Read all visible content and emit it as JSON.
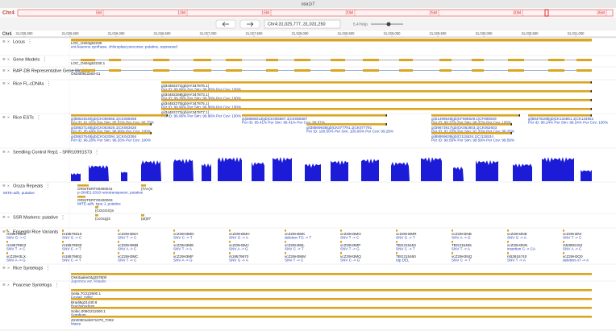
{
  "title": "osa1r7",
  "chromosome": "Chr4",
  "ideogram_ticks": [
    "5M",
    "10M",
    "15M",
    "20M",
    "25M",
    "30M",
    "35M"
  ],
  "location": "Chr4:31,025,777..31,031,250",
  "zoom": "5.47Kbp",
  "ruler": [
    "31,025,000",
    "31,025,500",
    "31,026,000",
    "31,026,500",
    "31,027,000",
    "31,027,500",
    "31,028,000",
    "31,028,500",
    "31,029,000",
    "31,029,500",
    "31,030,000",
    "31,030,500",
    "31,031,000"
  ],
  "tracks": [
    {
      "name": "Locus",
      "features": [
        {
          "label": "LOC_Os04g52230",
          "desc": "ent-kaurene synthase, chloroplast precursor, putative, expressed"
        }
      ]
    },
    {
      "name": "Gene Models",
      "features": [
        {
          "label": "LOC_Os04g52230.1"
        }
      ]
    },
    {
      "name": "RAP-DB Representative Gene Models",
      "features": [
        {
          "label": "Os04t0611800-01"
        }
      ]
    },
    {
      "name": "Rice FL-cDNAs",
      "features": [
        {
          "label": "gi|34482271|gb|AY347876.1|",
          "desc": "Per ID: 99.96% Per Sim: 99.96% Per Cov: 100%"
        },
        {
          "label": "gi|34482268|gb|AY347873.1|",
          "desc": "Per ID: 99.38% Per Sim: 99.38% Per Cov: 100%"
        },
        {
          "label": "gi|34482270|gb|AY347875.1|",
          "desc": "Per ID: 99.96% Per Sim: 99.96% Per Cov: 100%"
        },
        {
          "label": "gi|34482272|gb|AY347877.1|",
          "desc": "Per ID: 99.96% Per Sim: 99.96% Per Cov: 100%"
        }
      ]
    },
    {
      "name": "Rice ESTs",
      "features": [
        {
          "label": "gi|88634540|gb|CK056058.1|CK056058",
          "desc": "Per ID: 91.02% Per Sim: 95.52% Per Cov: 99.75%"
        },
        {
          "label": "gi|38656013|gb|CK055587.1|CK055587",
          "desc": "Per ID: 95.41% Per Sim: 98.41% Per Cov: 99.57%"
        },
        {
          "label": "gi|21499648|gb|CF695929.1|CF695929",
          "desc": "Per ID: 99.37% Per Sim: 99.37% Per Cov: 100%"
        },
        {
          "label": "gi|88476188|gb|CK134651.1|CK134651",
          "desc": "Per ID: 98.24% Per Sim: 98.24% Per Cov: 100%"
        },
        {
          "label": "gi|38637148|gb|CK063626.1|CK063626",
          "desc": "Per ID: 95.49% Per Sim: 98.49% Per Cov: 100%"
        },
        {
          "label": "gi|38669938|gb|CK077791.1|CK077791",
          "desc": "Per ID: 100.00% Per Sim: 100.00% Per Cov: 99.26%"
        },
        {
          "label": "gi|39673917|gb|CK062603.1|CK062603",
          "desc": "Per ID: 97.33% Per Sim: 97.33% Per Cov: 99.26%"
        },
        {
          "label": "gi|38637548|gb|CK043394.1|CK043394",
          "desc": "Per ID: 96.26% Per Sim: 98.26% Per Cov: 100%"
        },
        {
          "label": "gi|88959639|gb|CI115534.1|CI115534",
          "desc": "Per ID: 99.59% Per Sim: 99.59% Per Cov: 99.59%"
        }
      ]
    },
    {
      "name": "Seedling Control Rep1 - SRR10991573",
      "features": []
    },
    {
      "name": "Oryza Repeats",
      "features": [
        {
          "desc": "MITE-adh, putative"
        },
        {
          "label": "ORSITERT00400041",
          "desc": "p-SINE2-2010 retrotransposon, putative"
        },
        {
          "label": "ORSITERT00100003",
          "desc": "MITE-adh, type J, putative"
        },
        {
          "label": "(TAA)n"
        },
        {
          "label": "(CGGGG)n"
        }
      ]
    },
    {
      "name": "SSR Markers: putative",
      "features": [
        {
          "label": "(ccctcg)3"
        },
        {
          "label": "(at)07"
        }
      ]
    },
    {
      "name": "Ensembl Rice Variants",
      "features": [
        {
          "label": "rs19579849",
          "desc": "SNV G -> C"
        },
        {
          "label": "rs19579610",
          "desc": "SNV G -> C"
        },
        {
          "label": "vcZ29H3MA",
          "desc": "SNV T -> C"
        },
        {
          "label": "vcZ29H3MD",
          "desc": "SNV C -> T"
        },
        {
          "label": "vcZ29H3MH",
          "desc": "SNV G -> A"
        },
        {
          "label": "vcZ29H3MK",
          "desc": "deletion TG -> T"
        },
        {
          "label": "vcZ29H3MO",
          "desc": "SNV T -> C"
        },
        {
          "label": "vcZ29H3MR",
          "desc": "SNV G -> T"
        },
        {
          "label": "vcZ29H3NB",
          "desc": "SNV A -> G"
        },
        {
          "label": "vcZ29H3NE",
          "desc": "SNV G -> A"
        },
        {
          "label": "vcZ29H3NI",
          "desc": "SNV T -> C"
        },
        {
          "label": "rs19579822",
          "desc": "SNV T -> C"
        },
        {
          "label": "rs19579830",
          "desc": "SNV C -> T"
        },
        {
          "label": "vcZ29H3MB",
          "desc": "SNV A -> C"
        },
        {
          "label": "vcZ29H3ME",
          "desc": "SNV T -> A"
        },
        {
          "label": "vcZ29H3MJ",
          "desc": "SNV A -> G"
        },
        {
          "label": "vcZ29H3ML",
          "desc": "SNV C -> T"
        },
        {
          "label": "vcZ29H3MP",
          "desc": "SNV T -> G"
        },
        {
          "label": "TBG215453",
          "desc": "SNV C -> T"
        },
        {
          "label": "TBG215455",
          "desc": "SNV T -> A"
        },
        {
          "label": "vcZ29H3NN",
          "desc": "insertion C -> CA"
        },
        {
          "label": "rs53992152",
          "desc": "SNV A -> C"
        },
        {
          "label": "vcZ29H3LX",
          "desc": "SNV A -> G"
        },
        {
          "label": "rs19579802",
          "desc": "SNV C -> T"
        },
        {
          "label": "vcZ29H3MC",
          "desc": "SNV T -> C"
        },
        {
          "label": "vcZ29H3MF",
          "desc": "SNV A -> G"
        },
        {
          "label": "rs19579670",
          "desc": "SNV G -> A"
        },
        {
          "label": "vcZ29H3MM",
          "desc": "SNV T -> C"
        },
        {
          "label": "vcZ29H3MQ",
          "desc": "SNV C -> G"
        },
        {
          "label": "TBG215460",
          "desc": "Idp DEL"
        },
        {
          "label": "vcZ29H3NQ",
          "desc": "SNV C -> T"
        },
        {
          "label": "rs53916740",
          "desc": "SNV T -> A"
        },
        {
          "label": "vcZ29H3O0",
          "desc": "deletion AT -> A"
        }
      ]
    },
    {
      "name": "Rice Syntelogs",
      "features": [
        {
          "label": "OsKitaake04g257800",
          "desc": "Japonica var. Kitaake"
        }
      ]
    },
    {
      "name": "Poaceae Syntelogs",
      "features": [
        {
          "label": "Seita.7G223900.1",
          "desc": "Foxtail_millet"
        },
        {
          "label": "Bradi5g21440.6",
          "desc": "Brachypodium"
        },
        {
          "label": "Sobic.006G211500.1",
          "desc": "Sorghum"
        },
        {
          "label": "Zm00001eb071070_T002",
          "desc": "Maize"
        }
      ]
    }
  ]
}
